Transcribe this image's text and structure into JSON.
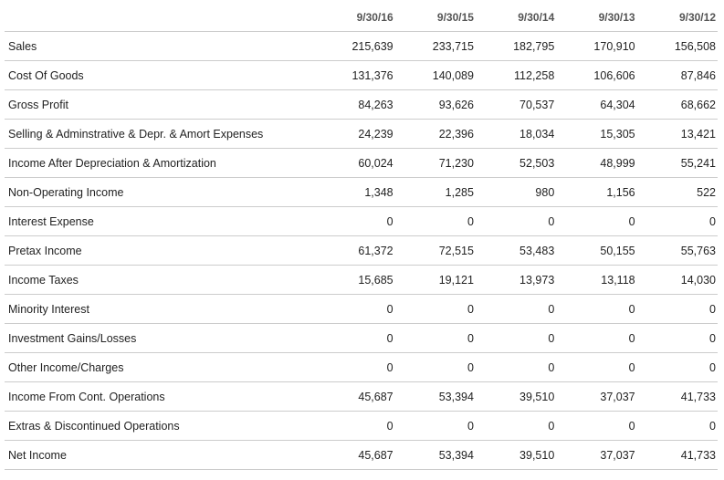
{
  "table": {
    "columns": [
      "9/30/16",
      "9/30/15",
      "9/30/14",
      "9/30/13",
      "9/30/12"
    ],
    "rows": [
      {
        "label": "Sales",
        "values": [
          "215,639",
          "233,715",
          "182,795",
          "170,910",
          "156,508"
        ]
      },
      {
        "label": "Cost Of Goods",
        "values": [
          "131,376",
          "140,089",
          "112,258",
          "106,606",
          "87,846"
        ]
      },
      {
        "label": "Gross Profit",
        "values": [
          "84,263",
          "93,626",
          "70,537",
          "64,304",
          "68,662"
        ]
      },
      {
        "label": "Selling & Adminstrative & Depr. & Amort Expenses",
        "values": [
          "24,239",
          "22,396",
          "18,034",
          "15,305",
          "13,421"
        ]
      },
      {
        "label": "Income After Depreciation & Amortization",
        "values": [
          "60,024",
          "71,230",
          "52,503",
          "48,999",
          "55,241"
        ]
      },
      {
        "label": "Non-Operating Income",
        "values": [
          "1,348",
          "1,285",
          "980",
          "1,156",
          "522"
        ]
      },
      {
        "label": "Interest Expense",
        "values": [
          "0",
          "0",
          "0",
          "0",
          "0"
        ]
      },
      {
        "label": "Pretax Income",
        "values": [
          "61,372",
          "72,515",
          "53,483",
          "50,155",
          "55,763"
        ]
      },
      {
        "label": "Income Taxes",
        "values": [
          "15,685",
          "19,121",
          "13,973",
          "13,118",
          "14,030"
        ]
      },
      {
        "label": "Minority Interest",
        "values": [
          "0",
          "0",
          "0",
          "0",
          "0"
        ]
      },
      {
        "label": "Investment Gains/Losses",
        "values": [
          "0",
          "0",
          "0",
          "0",
          "0"
        ]
      },
      {
        "label": "Other Income/Charges",
        "values": [
          "0",
          "0",
          "0",
          "0",
          "0"
        ]
      },
      {
        "label": "Income From Cont. Operations",
        "values": [
          "45,687",
          "53,394",
          "39,510",
          "37,037",
          "41,733"
        ]
      },
      {
        "label": "Extras & Discontinued Operations",
        "values": [
          "0",
          "0",
          "0",
          "0",
          "0"
        ]
      },
      {
        "label": "Net Income",
        "values": [
          "45,687",
          "53,394",
          "39,510",
          "37,037",
          "41,733"
        ]
      }
    ]
  }
}
